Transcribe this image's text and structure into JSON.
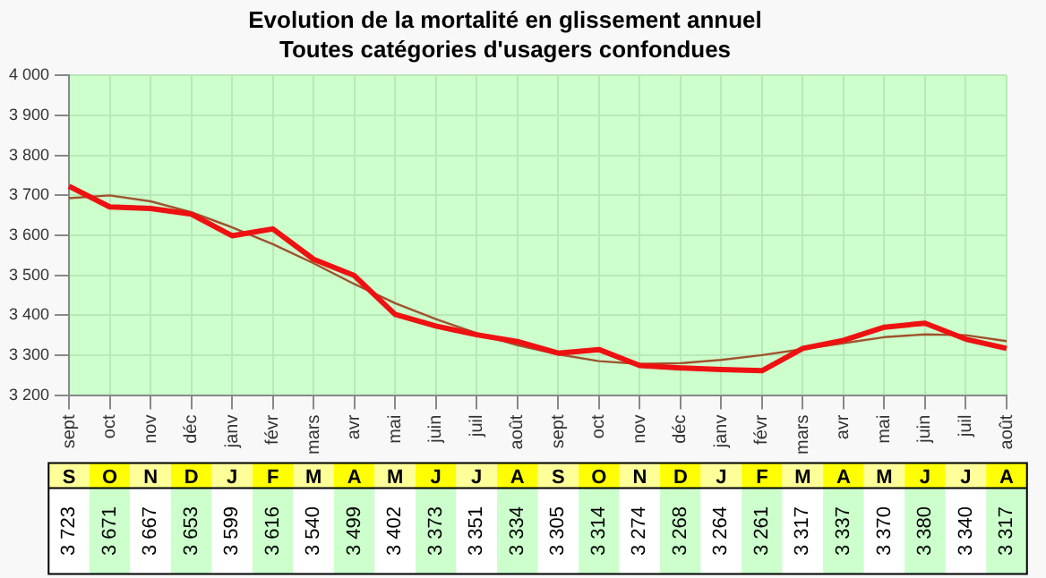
{
  "chart_data": {
    "type": "line",
    "title": "Evolution de la mortalité en glissement annuel",
    "subtitle": "Toutes catégories d'usagers confondues",
    "categories": [
      "sept",
      "oct",
      "nov",
      "déc",
      "janv",
      "févr",
      "mars",
      "avr",
      "mai",
      "juin",
      "juil",
      "août",
      "sept",
      "oct",
      "nov",
      "déc",
      "janv",
      "févr",
      "mars",
      "avr",
      "mai",
      "juin",
      "juil",
      "août"
    ],
    "series": [
      {
        "color": "#ee1111",
        "values": [
          3723,
          3671,
          3667,
          3653,
          3599,
          3616,
          3540,
          3499,
          3402,
          3373,
          3351,
          3334,
          3305,
          3314,
          3274,
          3268,
          3264,
          3261,
          3317,
          3337,
          3370,
          3380,
          3340,
          3317
        ],
        "value_labels": [
          "3 723",
          "3 671",
          "3 667",
          "3 653",
          "3 599",
          "3 616",
          "3 540",
          "3 499",
          "3 402",
          "3 373",
          "3 351",
          "3 334",
          "3 305",
          "3 314",
          "3 274",
          "3 268",
          "3 264",
          "3 261",
          "3 317",
          "3 337",
          "3 370",
          "3 380",
          "3 340",
          "3 317"
        ]
      },
      {
        "type": "line",
        "color": "#a0522d",
        "values": [
          3693,
          3700,
          3685,
          3658,
          3620,
          3578,
          3530,
          3478,
          3430,
          3390,
          3355,
          3325,
          3302,
          3285,
          3278,
          3280,
          3288,
          3300,
          3315,
          3330,
          3345,
          3352,
          3350,
          3335
        ]
      }
    ],
    "annotations": [
      "S",
      "O",
      "N",
      "D",
      "J",
      "F",
      "M",
      "A",
      "M",
      "J",
      "J",
      "A",
      "S",
      "O",
      "N",
      "D",
      "J",
      "F",
      "M",
      "A",
      "M",
      "J",
      "J",
      "A"
    ],
    "ylim": [
      3200,
      4000
    ],
    "yticks": [
      {
        "value": 3200,
        "label": "3 200"
      },
      {
        "value": 3300,
        "label": "3 300"
      },
      {
        "value": 3400,
        "label": "3 400"
      },
      {
        "value": 3500,
        "label": "3 500"
      },
      {
        "value": 3600,
        "label": "3 600"
      },
      {
        "value": 3700,
        "label": "3 700"
      },
      {
        "value": 3800,
        "label": "3 800"
      },
      {
        "value": 3900,
        "label": "3 900"
      },
      {
        "value": 4000,
        "label": "4 000"
      }
    ],
    "grid": true,
    "legend": false,
    "marker": "none",
    "line_style": "solid"
  }
}
